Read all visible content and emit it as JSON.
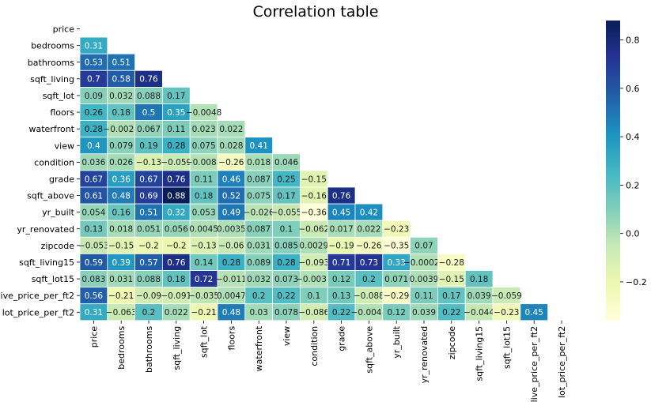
{
  "chart_data": {
    "type": "heatmap",
    "title": "Correlation table",
    "labels": [
      "price",
      "bedrooms",
      "bathrooms",
      "sqft_living",
      "sqft_lot",
      "floors",
      "waterfront",
      "view",
      "condition",
      "grade",
      "sqft_above",
      "yr_built",
      "yr_renovated",
      "zipcode",
      "sqft_living15",
      "sqft_lot15",
      "live_price_per_ft2",
      "lot_price_per_ft2"
    ],
    "mask": "upper-triangle-including-diagonal",
    "colormap": "YlGnBu",
    "vmin": -0.36,
    "vmax": 0.88,
    "colorbar_ticks": [
      0.8,
      0.6,
      0.4,
      0.2,
      0.0,
      -0.2
    ],
    "colorbar_tick_labels": [
      "0.8",
      "0.6",
      "0.4",
      "0.2",
      "0.0",
      "−0.2"
    ],
    "rows": [
      [],
      [
        "0.31"
      ],
      [
        "0.53",
        "0.51"
      ],
      [
        "0.7",
        "0.58",
        "0.76"
      ],
      [
        "0.09",
        "0.032",
        "0.088",
        "0.17"
      ],
      [
        "0.26",
        "0.18",
        "0.5",
        "0.35",
        "-0.0048"
      ],
      [
        "0.28",
        "-0.0024",
        "0.067",
        "0.11",
        "0.023",
        "0.022"
      ],
      [
        "0.4",
        "0.079",
        "0.19",
        "0.28",
        "0.075",
        "0.028",
        "0.41"
      ],
      [
        "0.036",
        "0.026",
        "-0.13",
        "-0.059",
        "-0.0088",
        "-0.26",
        "0.018",
        "0.046"
      ],
      [
        "0.67",
        "0.36",
        "0.67",
        "0.76",
        "0.11",
        "0.46",
        "0.087",
        "0.25",
        "-0.15"
      ],
      [
        "0.61",
        "0.48",
        "0.69",
        "0.88",
        "0.18",
        "0.52",
        "0.075",
        "0.17",
        "-0.16",
        "0.76"
      ],
      [
        "0.054",
        "0.16",
        "0.51",
        "0.32",
        "0.053",
        "0.49",
        "-0.026",
        "-0.055",
        "-0.36",
        "0.45",
        "0.42"
      ],
      [
        "0.13",
        "0.018",
        "0.051",
        "0.056",
        "0.0045",
        "0.0035",
        "0.087",
        "0.1",
        "-0.062",
        "0.017",
        "0.022",
        "-0.23"
      ],
      [
        "-0.053",
        "-0.15",
        "-0.2",
        "-0.2",
        "-0.13",
        "-0.06",
        "0.031",
        "0.085",
        "0.0029",
        "-0.19",
        "-0.26",
        "-0.35",
        "0.07"
      ],
      [
        "0.59",
        "0.39",
        "0.57",
        "0.76",
        "0.14",
        "0.28",
        "0.089",
        "0.28",
        "-0.093",
        "0.71",
        "0.73",
        "0.33",
        "-0.00025",
        "-0.28"
      ],
      [
        "0.083",
        "0.031",
        "0.088",
        "0.18",
        "0.72",
        "-0.011",
        "0.032",
        "0.073",
        "-0.0031",
        "0.12",
        "0.2",
        "0.071",
        "0.0039",
        "-0.15",
        "0.18"
      ],
      [
        "0.56",
        "-0.21",
        "-0.09",
        "-0.091",
        "-0.035",
        "0.0047",
        "0.2",
        "0.22",
        "0.1",
        "0.13",
        "-0.088",
        "-0.29",
        "0.11",
        "0.17",
        "0.039",
        "-0.059"
      ],
      [
        "0.31",
        "-0.063",
        "0.2",
        "0.022",
        "-0.21",
        "0.48",
        "0.03",
        "0.078",
        "-0.086",
        "0.22",
        "-0.0048",
        "0.12",
        "0.039",
        "0.22",
        "-0.044",
        "-0.23",
        "0.45"
      ]
    ]
  }
}
